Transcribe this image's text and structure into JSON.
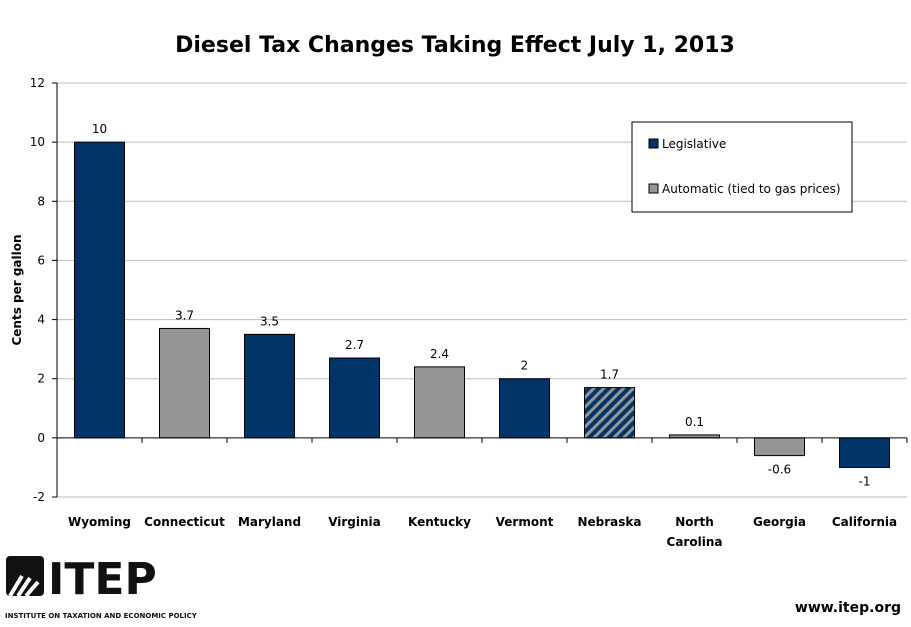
{
  "chart_data": {
    "type": "bar",
    "title": "Diesel Tax Changes Taking Effect July 1, 2013",
    "xlabel": "",
    "ylabel": "Cents per gallon",
    "ylim": [
      -2,
      12
    ],
    "yticks": [
      -2,
      0,
      2,
      4,
      6,
      8,
      10,
      12
    ],
    "grid": true,
    "categories": [
      "Wyoming",
      "Connecticut",
      "Maryland",
      "Virginia",
      "Kentucky",
      "Vermont",
      "Nebraska",
      "North Carolina",
      "Georgia",
      "California"
    ],
    "values": [
      10,
      3.7,
      3.5,
      2.7,
      2.4,
      2,
      1.7,
      0.1,
      -0.6,
      -1
    ],
    "data_labels": [
      "10",
      "3.7",
      "3.5",
      "2.7",
      "2.4",
      "2",
      "1.7",
      "0.1",
      "-0.6",
      "-1"
    ],
    "bar_type": [
      "legislative",
      "automatic",
      "legislative",
      "legislative",
      "automatic",
      "legislative",
      "mixed",
      "automatic",
      "automatic",
      "legislative"
    ],
    "legend": {
      "placement": "top-right",
      "entries": [
        {
          "key": "legislative",
          "label": "Legislative",
          "color": "#003366"
        },
        {
          "key": "automatic",
          "label": "Automatic (tied to gas prices)",
          "color": "#969696"
        }
      ]
    }
  },
  "footer": {
    "logo_text": "ITEP",
    "logo_subtitle": "INSTITUTE ON TAXATION AND ECONOMIC POLICY",
    "url": "www.itep.org"
  }
}
